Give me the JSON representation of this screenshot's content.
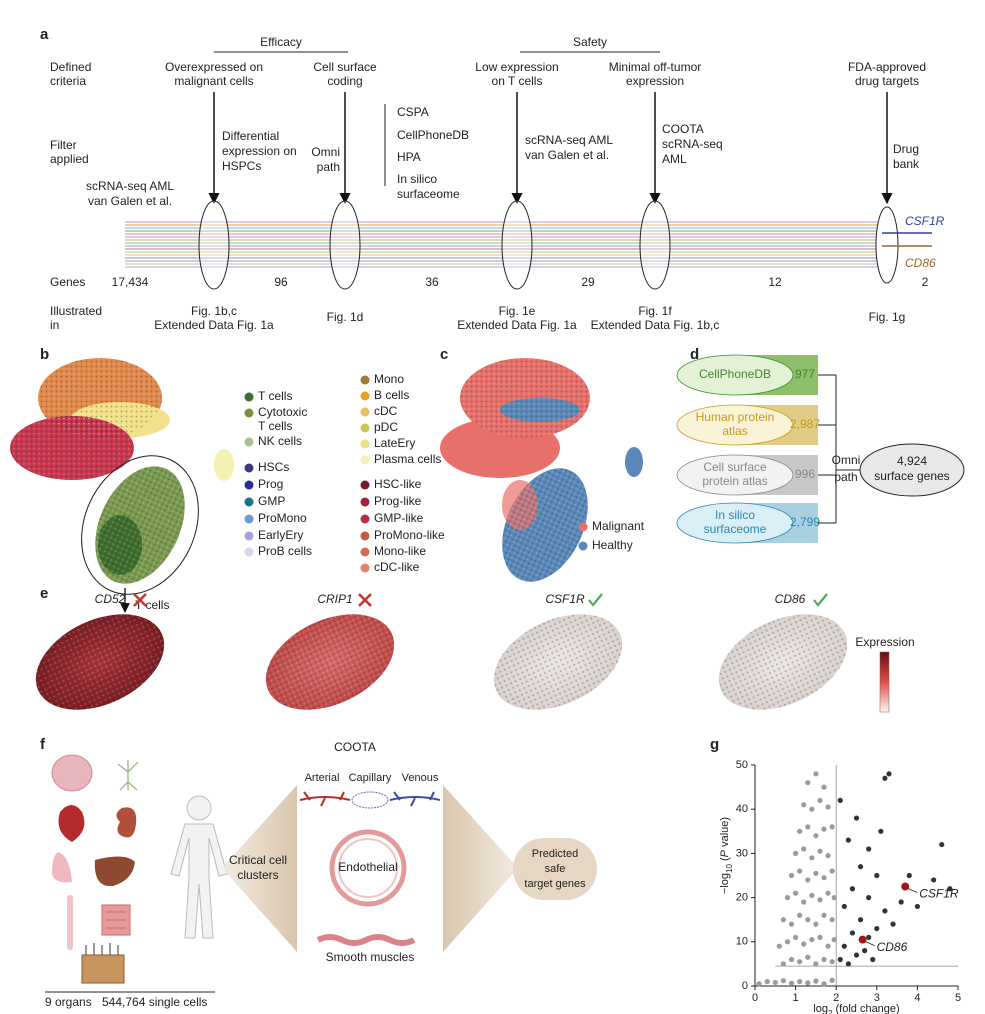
{
  "panel_a": {
    "label": "a",
    "row_labels": [
      [
        "Defined",
        "criteria"
      ],
      [
        "Filter",
        "applied"
      ],
      [
        "Genes"
      ],
      [
        "Illustrated",
        "in"
      ]
    ],
    "groups": [
      "Efficacy",
      "Safety"
    ],
    "source": [
      "scRNA-seq AML",
      "van Galen et al."
    ],
    "start_genes": "17,434",
    "steps": [
      {
        "criterion": [
          "Overexpressed on",
          "malignant cells"
        ],
        "filter": [
          "Differential",
          "expression on",
          "HSPCs"
        ],
        "genes": "96",
        "figure": [
          "Fig. 1b,c",
          "Extended Data Fig. 1a"
        ]
      },
      {
        "criterion": [
          "Cell surface",
          "coding"
        ],
        "filter": [
          "Omni",
          "path"
        ],
        "resources": [
          "CSPA",
          "CellPhoneDB",
          "HPA",
          "In silico",
          "surfaceome"
        ],
        "genes": "36",
        "figure": [
          "Fig. 1d"
        ]
      },
      {
        "criterion": [
          "Low expression",
          "on T cells"
        ],
        "filter": [
          "scRNA-seq AML",
          "van Galen et al."
        ],
        "genes": "29",
        "figure": [
          "Fig. 1e",
          "Extended Data Fig. 1a"
        ]
      },
      {
        "criterion": [
          "Minimal off-tumor",
          "expression"
        ],
        "filter": [
          "COOTA",
          "scRNA-seq",
          "AML"
        ],
        "genes": "12",
        "figure": [
          "Fig. 1f",
          "Extended Data Fig. 1b,c"
        ]
      },
      {
        "criterion": [
          "FDA-approved",
          "drug targets"
        ],
        "filter": [
          "Drug",
          "bank"
        ],
        "genes": "2",
        "figure": [
          "Fig. 1g"
        ]
      }
    ],
    "final_genes": [
      {
        "name": "CSF1R",
        "color": "#2e3ea0"
      },
      {
        "name": "CD86",
        "color": "#a0642a"
      }
    ]
  },
  "panel_b": {
    "label": "b",
    "annotation": "T cells",
    "legend_columns": [
      [
        {
          "lines": [
            "T cells"
          ],
          "color": "#3f6e2f"
        },
        {
          "lines": [
            "Cytotoxic",
            "T cells"
          ],
          "color": "#7d8f3a"
        },
        {
          "lines": [
            "NK cells"
          ],
          "color": "#a7c28a"
        },
        {
          "lines": [
            "HSCs"
          ],
          "color": "#3a3a7a"
        },
        {
          "lines": [
            "Prog"
          ],
          "color": "#2a2a9a"
        },
        {
          "lines": [
            "GMP"
          ],
          "color": "#1f6e8c"
        },
        {
          "lines": [
            "ProMono"
          ],
          "color": "#6b9bd1"
        },
        {
          "lines": [
            "EarlyEry"
          ],
          "color": "#a8a2e0"
        },
        {
          "lines": [
            "ProB cells"
          ],
          "color": "#d8d4ee"
        }
      ],
      [
        {
          "lines": [
            "Mono"
          ],
          "color": "#a47a2e"
        },
        {
          "lines": [
            "B cells"
          ],
          "color": "#e8a020"
        },
        {
          "lines": [
            "cDC"
          ],
          "color": "#e8c060"
        },
        {
          "lines": [
            "pDC"
          ],
          "color": "#c8c850"
        },
        {
          "lines": [
            "LateEry"
          ],
          "color": "#f0e080"
        },
        {
          "lines": [
            "Plasma cells"
          ],
          "color": "#f4f0b0"
        },
        {
          "lines": [
            "HSC-like"
          ],
          "color": "#7a1a2a"
        },
        {
          "lines": [
            "Prog-like"
          ],
          "color": "#a02040"
        },
        {
          "lines": [
            "GMP-like"
          ],
          "color": "#b83040"
        },
        {
          "lines": [
            "ProMono-like"
          ],
          "color": "#c85a40"
        },
        {
          "lines": [
            "Mono-like"
          ],
          "color": "#d86a50"
        },
        {
          "lines": [
            "cDC-like"
          ],
          "color": "#e88070"
        }
      ]
    ]
  },
  "panel_c": {
    "label": "c",
    "legend": [
      {
        "name": "Malignant",
        "color": "#e8706a"
      },
      {
        "name": "Healthy",
        "color": "#5a88b8"
      }
    ]
  },
  "panel_d": {
    "label": "d",
    "sources": [
      {
        "lines": [
          "CellPhoneDB"
        ],
        "count": "977",
        "color": "#8dbf6a",
        "fill": "#e3f1d6",
        "text_color": "#3f8a2c"
      },
      {
        "lines": [
          "Human protein",
          "atlas"
        ],
        "count": "2,987",
        "color": "#e2cb84",
        "fill": "#fbf3d8",
        "text_color": "#c29a1c"
      },
      {
        "lines": [
          "Cell surface",
          "protein atlas"
        ],
        "count": "996",
        "color": "#c8c8c8",
        "fill": "#f2f2f2",
        "text_color": "#888888"
      },
      {
        "lines": [
          "In silico",
          "surfaceome"
        ],
        "count": "2,799",
        "color": "#a8d0e0",
        "fill": "#daeef6",
        "text_color": "#2a88b0"
      }
    ],
    "method": [
      "Omni",
      "path"
    ],
    "result": [
      "4,924",
      "surface genes"
    ]
  },
  "panel_e": {
    "label": "e",
    "genes": [
      {
        "name": "CD52",
        "passes": false
      },
      {
        "name": "CRIP1",
        "passes": false
      },
      {
        "name": "CSF1R",
        "passes": true
      },
      {
        "name": "CD86",
        "passes": true
      }
    ],
    "colorbar_label": "Expression"
  },
  "panel_f": {
    "label": "f",
    "title": "COOTA",
    "vessels": [
      "Arterial",
      "Capillary",
      "Venous"
    ],
    "cell_types": [
      "Endothelial",
      "Smooth muscles"
    ],
    "input": [
      "Critical cell",
      "clusters"
    ],
    "output": [
      "Predicted",
      "safe",
      "target genes"
    ],
    "footer": [
      "9 organs",
      "544,764 single cells"
    ]
  },
  "chart_data": {
    "type": "scatter",
    "label": "g",
    "x_label": [
      "log",
      "2",
      " (fold change)"
    ],
    "y_label": [
      "−log",
      "10",
      " (",
      "P",
      " value)"
    ],
    "xlim": [
      0,
      5
    ],
    "ylim": [
      0,
      50
    ],
    "xticks": [
      0,
      1,
      2,
      3,
      4,
      5
    ],
    "yticks": [
      0,
      10,
      20,
      30,
      40,
      50
    ],
    "threshold_x": 2,
    "threshold_y": 4.5,
    "series": [
      {
        "color": "#9a9a9a",
        "x": [
          0.1,
          0.3,
          0.5,
          0.7,
          0.9,
          1.1,
          1.3,
          1.5,
          1.7,
          1.9,
          0.7,
          0.9,
          1.1,
          1.3,
          1.5,
          1.7,
          1.9,
          0.6,
          0.8,
          1.0,
          1.2,
          1.4,
          1.6,
          1.8,
          1.95,
          0.7,
          0.9,
          1.1,
          1.3,
          1.5,
          1.7,
          1.9,
          0.8,
          1.0,
          1.2,
          1.4,
          1.6,
          1.8,
          1.95,
          0.9,
          1.1,
          1.3,
          1.5,
          1.7,
          1.9,
          1.0,
          1.2,
          1.4,
          1.6,
          1.8,
          1.1,
          1.3,
          1.5,
          1.7,
          1.9,
          1.2,
          1.4,
          1.6,
          1.8,
          1.3,
          1.5,
          1.7
        ],
        "y": [
          0.5,
          1,
          0.8,
          1.2,
          0.6,
          1,
          0.7,
          1.1,
          0.5,
          1.3,
          5,
          6,
          5.5,
          6.5,
          5,
          6,
          5.5,
          9,
          10,
          11,
          9.5,
          10.5,
          11,
          9,
          10.5,
          15,
          14,
          16,
          15,
          14,
          16,
          15,
          20,
          21,
          19,
          20.5,
          19.5,
          21,
          20,
          25,
          26,
          24,
          25.5,
          24.5,
          26,
          30,
          31,
          29,
          30.5,
          29.5,
          35,
          36,
          34,
          35.5,
          36,
          41,
          40,
          42,
          40.5,
          46,
          48,
          45
        ]
      },
      {
        "color": "#333333",
        "x": [
          2.1,
          2.2,
          2.3,
          2.4,
          2.5,
          2.6,
          2.7,
          2.8,
          2.9,
          3.0,
          2.2,
          2.4,
          2.6,
          2.8,
          3.0,
          3.2,
          3.4,
          3.6,
          3.8,
          4.0,
          2.3,
          2.5,
          2.8,
          3.1,
          3.3,
          3.2,
          2.1,
          4.4,
          4.6,
          4.8
        ],
        "y": [
          6,
          9,
          5,
          12,
          7,
          15,
          8,
          11,
          6,
          13,
          18,
          22,
          27,
          20,
          25,
          17,
          14,
          19,
          25,
          18,
          33,
          38,
          31,
          35,
          48,
          47,
          42,
          24,
          32,
          22
        ]
      },
      {
        "color": "#a31515",
        "x": [
          3.7,
          2.65
        ],
        "y": [
          22.5,
          10.5
        ],
        "point_labels": [
          "CSF1R",
          "CD86"
        ]
      }
    ]
  }
}
